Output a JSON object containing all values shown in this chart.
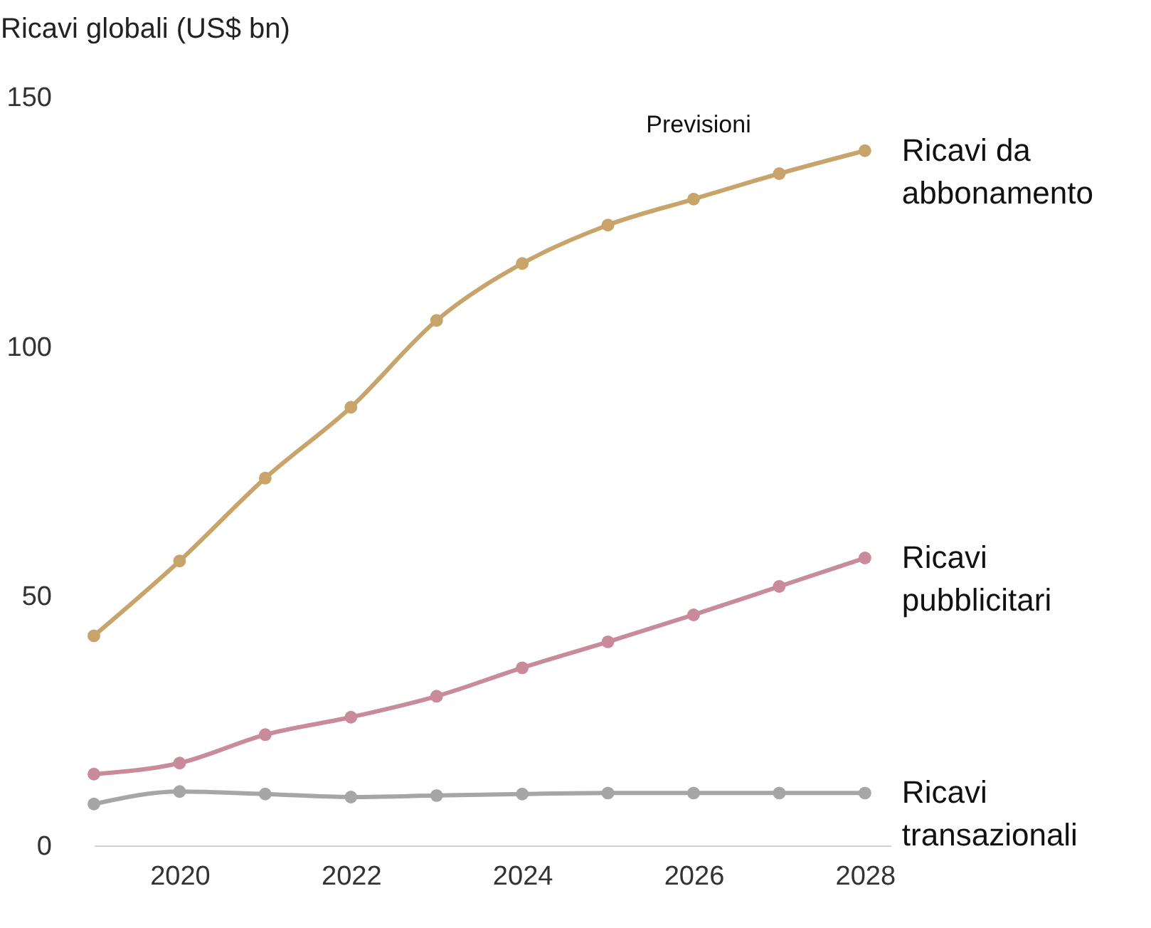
{
  "chart_data": {
    "type": "line",
    "ylabel": "Ricavi globali (US$ bn)",
    "x": [
      2019,
      2020,
      2021,
      2022,
      2023,
      2024,
      2025,
      2026,
      2027,
      2028
    ],
    "xlim": [
      2019,
      2028.3
    ],
    "xticks": [
      2020,
      2022,
      2024,
      2026,
      2028
    ],
    "ylim": [
      0,
      150
    ],
    "yticks": [
      0,
      50,
      100,
      150
    ],
    "grid": false,
    "legend": false,
    "marker": "circle",
    "line_style": "solid",
    "annotations": [
      "Previsioni"
    ],
    "series": [
      {
        "name": "Ricavi da abbonamento",
        "color": "#c8a46a",
        "values": [
          42,
          57,
          73.6,
          87.8,
          105.2,
          116.6,
          124.3,
          129.5,
          134.6,
          139.2
        ]
      },
      {
        "name": "Ricavi pubblicitari",
        "color": "#c98a9a",
        "values": [
          14.3,
          16.5,
          22.2,
          25.7,
          29.9,
          35.6,
          40.8,
          46.2,
          51.9,
          57.6
        ]
      },
      {
        "name": "Ricavi transazionali",
        "color": "#a6a6a6",
        "values": [
          8.3,
          10.8,
          10.3,
          9.7,
          10,
          10.3,
          10.5,
          10.5,
          10.5,
          10.5
        ]
      }
    ]
  }
}
